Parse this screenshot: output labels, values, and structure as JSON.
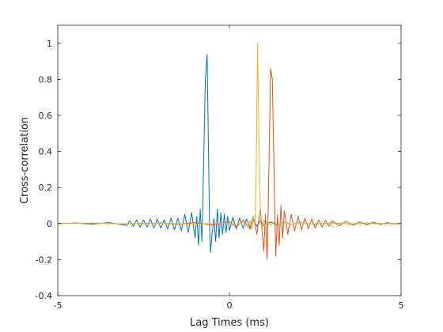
{
  "chart_data": {
    "type": "line",
    "title": "",
    "xlabel": "Lag Times (ms)",
    "ylabel": "Cross-correlation",
    "xlim": [
      -5,
      5
    ],
    "ylim": [
      -0.4,
      1.1
    ],
    "xticks": [
      -5,
      0,
      5
    ],
    "xtick_labels": [
      "-5",
      "0",
      "5"
    ],
    "yticks": [
      -0.4,
      -0.2,
      0,
      0.2,
      0.4,
      0.6,
      0.8,
      1
    ],
    "ytick_labels": [
      "-0.4",
      "-0.2",
      "0",
      "0.2",
      "0.4",
      "0.6",
      "0.8",
      "1"
    ],
    "grid": false,
    "legend": "none",
    "series": [
      {
        "color": "#0072BD",
        "x": [
          -5,
          -4.5,
          -4,
          -3.5,
          -3.0,
          -2.9,
          -2.8,
          -2.7,
          -2.6,
          -2.5,
          -2.4,
          -2.3,
          -2.2,
          -2.1,
          -2.0,
          -1.9,
          -1.8,
          -1.7,
          -1.6,
          -1.5,
          -1.4,
          -1.3,
          -1.2,
          -1.1,
          -1.0,
          -0.95,
          -0.9,
          -0.85,
          -0.8,
          -0.75,
          -0.7,
          -0.65,
          -0.62,
          -0.58,
          -0.55,
          -0.5,
          -0.45,
          -0.4,
          -0.35,
          -0.3,
          -0.25,
          -0.2,
          -0.15,
          -0.1,
          -0.05,
          0.0,
          0.1,
          0.2,
          0.3,
          0.4,
          0.5,
          0.6,
          0.7,
          0.8,
          0.9,
          1.0,
          1.2,
          1.4,
          1.6,
          1.8,
          2.0,
          2.5,
          3.0,
          3.5,
          4.0,
          4.5,
          5
        ],
        "y": [
          0.0,
          0.003,
          -0.003,
          0.005,
          -0.01,
          0.015,
          -0.015,
          0.02,
          -0.02,
          0.02,
          -0.02,
          0.025,
          -0.025,
          0.025,
          -0.025,
          0.02,
          -0.03,
          0.03,
          -0.035,
          0.03,
          -0.04,
          0.05,
          -0.05,
          0.06,
          -0.08,
          0.04,
          -0.12,
          0.08,
          -0.1,
          0.35,
          0.8,
          0.94,
          0.55,
          0.0,
          -0.16,
          -0.05,
          0.03,
          -0.1,
          0.08,
          -0.08,
          0.06,
          -0.06,
          0.05,
          -0.05,
          0.04,
          -0.04,
          0.035,
          -0.03,
          0.03,
          -0.025,
          0.025,
          -0.02,
          0.02,
          -0.015,
          0.015,
          -0.01,
          0.008,
          -0.008,
          0.006,
          -0.005,
          0.004,
          -0.003,
          0.003,
          -0.002,
          0.002,
          -0.001,
          0.0
        ]
      },
      {
        "color": "#D95319",
        "x": [
          -5,
          -4.0,
          -3.0,
          -2.0,
          -1.5,
          -1.0,
          -0.5,
          0.0,
          0.2,
          0.4,
          0.6,
          0.7,
          0.8,
          0.9,
          1.0,
          1.05,
          1.1,
          1.15,
          1.2,
          1.25,
          1.3,
          1.35,
          1.4,
          1.45,
          1.5,
          1.55,
          1.6,
          1.7,
          1.8,
          1.9,
          2.0,
          2.1,
          2.2,
          2.3,
          2.4,
          2.5,
          2.6,
          2.7,
          2.8,
          2.9,
          3.0,
          3.2,
          3.4,
          3.6,
          3.8,
          4.0,
          4.2,
          4.4,
          4.6,
          4.8,
          5
        ],
        "y": [
          0.0,
          0.002,
          -0.002,
          0.003,
          -0.004,
          0.005,
          -0.008,
          0.01,
          -0.02,
          0.02,
          -0.03,
          0.04,
          -0.06,
          0.08,
          -0.15,
          0.05,
          -0.2,
          0.3,
          0.86,
          0.8,
          0.3,
          -0.18,
          0.05,
          -0.12,
          0.1,
          -0.08,
          0.07,
          -0.06,
          0.05,
          -0.04,
          0.04,
          -0.035,
          0.03,
          -0.03,
          0.025,
          -0.025,
          0.02,
          -0.02,
          0.018,
          -0.015,
          0.015,
          -0.012,
          0.012,
          -0.01,
          0.01,
          -0.008,
          0.008,
          -0.006,
          0.005,
          -0.003,
          0.0
        ]
      },
      {
        "color": "#EDB120",
        "x": [
          -5,
          -4.0,
          -3.0,
          -2.0,
          -1.0,
          0.0,
          0.2,
          0.4,
          0.5,
          0.6,
          0.65,
          0.7,
          0.75,
          0.78,
          0.82,
          0.85,
          0.88,
          0.92,
          0.95,
          1.0,
          1.05,
          1.1,
          1.2,
          1.3,
          1.4,
          1.6,
          1.8,
          2.0,
          2.5,
          3.0,
          3.5,
          4.0,
          4.5,
          5
        ],
        "y": [
          0.0,
          0.003,
          -0.002,
          0.002,
          -0.003,
          0.004,
          -0.005,
          0.008,
          -0.01,
          0.015,
          -0.03,
          0.04,
          0.0,
          0.3,
          1.0,
          0.6,
          0.2,
          0.0,
          -0.04,
          0.02,
          -0.015,
          0.012,
          -0.01,
          0.008,
          -0.006,
          0.005,
          -0.004,
          0.003,
          -0.002,
          0.002,
          -0.001,
          0.001,
          -0.001,
          0.0
        ]
      }
    ]
  }
}
